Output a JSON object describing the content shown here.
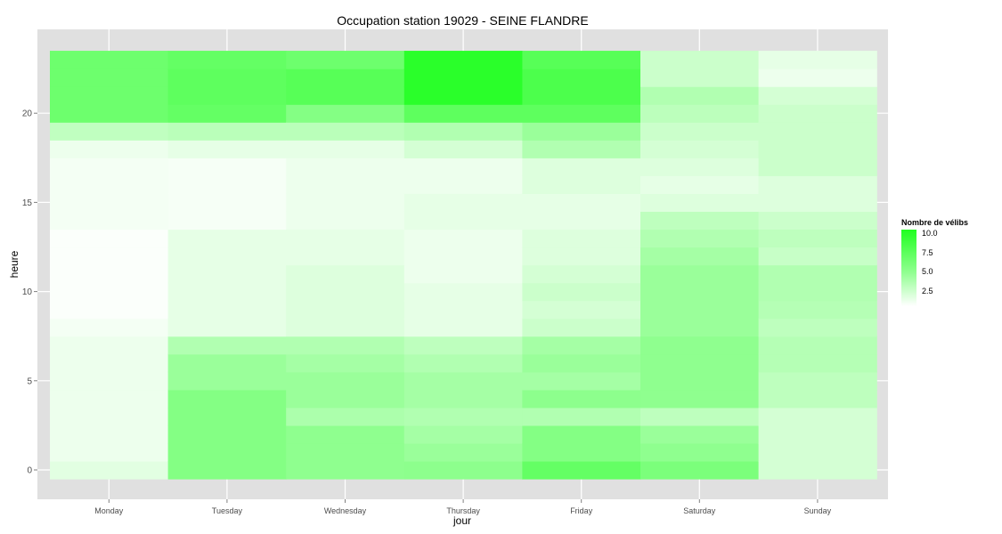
{
  "chart_data": {
    "type": "heatmap",
    "title": "Occupation station 19029 - SEINE FLANDRE",
    "xlabel": "jour",
    "ylabel": "heure",
    "x_categories": [
      "Monday",
      "Tuesday",
      "Wednesday",
      "Thursday",
      "Friday",
      "Saturday",
      "Sunday"
    ],
    "y_hours": [
      0,
      1,
      2,
      3,
      4,
      5,
      6,
      7,
      8,
      9,
      10,
      11,
      12,
      13,
      14,
      15,
      16,
      17,
      18,
      19,
      20,
      21,
      22,
      23
    ],
    "y_ticks": [
      0,
      5,
      10,
      15,
      20
    ],
    "values": [
      [
        1.8,
        1.3,
        1.3,
        1.3,
        1.3,
        1.3,
        1.3,
        1.3,
        1.0,
        0.7,
        0.7,
        0.7,
        0.7,
        0.7,
        1.0,
        1.0,
        1.0,
        1.0,
        1.3,
        3.3,
        7.0,
        7.0,
        7.0,
        7.0
      ],
      [
        6.0,
        6.0,
        6.0,
        6.0,
        6.0,
        5.0,
        5.0,
        4.0,
        1.6,
        1.6,
        1.6,
        1.6,
        1.6,
        1.6,
        0.9,
        0.9,
        0.9,
        0.9,
        1.6,
        3.6,
        7.4,
        7.7,
        7.7,
        7.4
      ],
      [
        5.5,
        5.5,
        5.5,
        4.2,
        5.0,
        5.0,
        4.5,
        4.0,
        2.0,
        2.0,
        2.0,
        2.0,
        1.6,
        1.6,
        1.3,
        1.3,
        1.3,
        1.3,
        1.6,
        3.6,
        6.0,
        8.0,
        8.0,
        7.0
      ],
      [
        5.6,
        5.0,
        4.5,
        4.0,
        4.5,
        4.5,
        4.0,
        3.4,
        1.6,
        1.6,
        1.6,
        1.3,
        1.3,
        1.3,
        1.6,
        1.6,
        1.3,
        1.3,
        2.4,
        4.0,
        7.7,
        10.0,
        10.0,
        10.0
      ],
      [
        7.4,
        6.0,
        6.0,
        4.0,
        5.6,
        4.5,
        5.0,
        4.5,
        2.8,
        2.4,
        2.8,
        2.4,
        2.0,
        2.0,
        1.6,
        1.6,
        2.0,
        2.0,
        4.0,
        5.0,
        7.7,
        8.5,
        8.5,
        8.0
      ],
      [
        6.4,
        5.5,
        5.0,
        3.4,
        5.5,
        5.5,
        5.5,
        5.5,
        5.0,
        5.0,
        5.0,
        5.0,
        4.5,
        4.0,
        3.4,
        2.0,
        1.6,
        2.0,
        2.4,
        2.8,
        3.5,
        4.0,
        2.8,
        2.8
      ],
      [
        2.4,
        2.4,
        2.4,
        2.4,
        3.4,
        3.4,
        3.8,
        3.8,
        3.4,
        3.8,
        4.0,
        4.0,
        3.0,
        3.4,
        2.8,
        2.0,
        2.0,
        2.8,
        2.8,
        2.8,
        2.8,
        2.4,
        1.3,
        1.6
      ]
    ],
    "value_range": [
      0.5,
      10.5
    ],
    "legend_title": "Nombre de vélibs",
    "legend_ticks": [
      "10.0",
      "7.5",
      "5.0",
      "2.5"
    ],
    "legend_tick_values": [
      10.0,
      7.5,
      5.0,
      2.5
    ],
    "legend_position": "right",
    "color_low": "#ffffff",
    "color_high": "#1fff1f",
    "panel_background": "#e0e0e0",
    "grid": true
  }
}
